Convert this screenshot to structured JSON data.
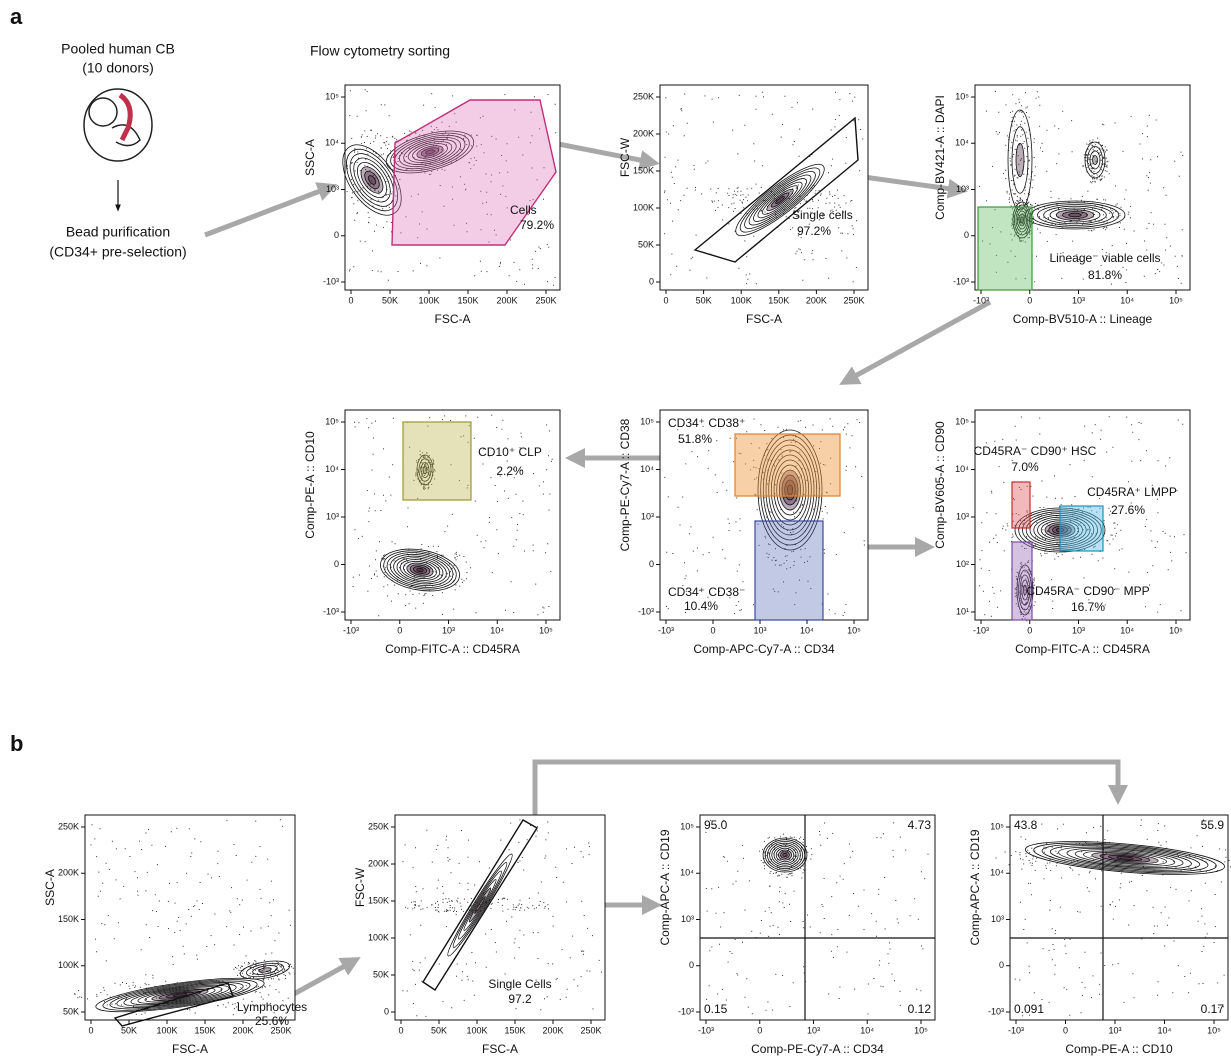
{
  "panel_a": {
    "label": "a",
    "source": {
      "title": "Pooled human CB",
      "subtitle": "(10 donors)",
      "step": "Bead purification",
      "step_note": "(CD34+ pre-selection)"
    },
    "section_title": "Flow cytometry sorting",
    "plots": [
      {
        "y_label": "SSC-A",
        "x_label": "FSC-A",
        "x_ticks": [
          "0",
          "50K",
          "100K",
          "150K",
          "200K",
          "250K"
        ],
        "y_ticks": [
          "-10³",
          "0",
          "10³",
          "10⁴",
          "10⁵"
        ],
        "gates": [
          {
            "name": "Cells",
            "value": "79.2%"
          }
        ]
      },
      {
        "y_label": "FSC-W",
        "x_label": "FSC-A",
        "x_ticks": [
          "0",
          "50K",
          "100K",
          "150K",
          "200K",
          "250K"
        ],
        "y_ticks": [
          "0",
          "50K",
          "100K",
          "150K",
          "200K",
          "250K"
        ],
        "gates": [
          {
            "name": "Single cells",
            "value": "97.2%"
          }
        ]
      },
      {
        "y_label": "Comp-BV421-A :: DAPI",
        "x_label": "Comp-BV510-A :: Lineage",
        "x_ticks": [
          "-10³",
          "0",
          "10³",
          "10⁴",
          "10⁵"
        ],
        "y_ticks": [
          "-10³",
          "0",
          "10³",
          "10⁴",
          "10⁵"
        ],
        "gates": [
          {
            "name": "Lineage⁻ viable cells",
            "value": "81.8%"
          }
        ]
      },
      {
        "y_label": "Comp-PE-A :: CD10",
        "x_label": "Comp-FITC-A :: CD45RA",
        "x_ticks": [
          "-10³",
          "0",
          "10³",
          "10⁴",
          "10⁵"
        ],
        "y_ticks": [
          "-10³",
          "0",
          "10³",
          "10⁴",
          "10⁵"
        ],
        "gates": [
          {
            "name": "CD10⁺ CLP",
            "value": "2.2%"
          }
        ]
      },
      {
        "y_label": "Comp-PE-Cy7-A :: CD38",
        "x_label": "Comp-APC-Cy7-A :: CD34",
        "x_ticks": [
          "-10³",
          "0",
          "10³",
          "10⁴",
          "10⁵"
        ],
        "y_ticks": [
          "-10³",
          "0",
          "10³",
          "10⁴",
          "10⁵"
        ],
        "gates": [
          {
            "name": "CD34⁺ CD38⁺",
            "value": "51.8%"
          },
          {
            "name": "CD34⁺ CD38⁻",
            "value": "10.4%"
          }
        ]
      },
      {
        "y_label": "Comp-BV605-A :: CD90",
        "x_label": "Comp-FITC-A :: CD45RA",
        "x_ticks": [
          "-10³",
          "0",
          "10³",
          "10⁴",
          "10⁵"
        ],
        "y_ticks": [
          "10¹",
          "10²",
          "10³",
          "10⁴",
          "10⁵"
        ],
        "gates": [
          {
            "name": "CD45RA⁻ CD90⁺ HSC",
            "value": "7.0%"
          },
          {
            "name": "CD45RA⁺ LMPP",
            "value": "27.6%"
          },
          {
            "name": "CD45RA⁻ CD90⁻ MPP",
            "value": "16.7%"
          }
        ]
      }
    ]
  },
  "panel_b": {
    "label": "b",
    "plots": [
      {
        "y_label": "SSC-A",
        "x_label": "FSC-A",
        "x_ticks": [
          "0",
          "50K",
          "100K",
          "150K",
          "200K",
          "250K"
        ],
        "y_ticks": [
          "50K",
          "100K",
          "150K",
          "200K",
          "250K"
        ],
        "gates": [
          {
            "name": "Lymphocytes",
            "value": "25.6%"
          }
        ]
      },
      {
        "y_label": "FSC-W",
        "x_label": "FSC-A",
        "x_ticks": [
          "0",
          "50K",
          "100K",
          "150K",
          "200K",
          "250K"
        ],
        "y_ticks": [
          "0",
          "50K",
          "100K",
          "150K",
          "200K",
          "250K"
        ],
        "gates": [
          {
            "name": "Single Cells",
            "value": "97.2"
          }
        ]
      },
      {
        "y_label": "Comp-APC-A :: CD19",
        "x_label": "Comp-PE-Cy7-A :: CD34",
        "x_ticks": [
          "-10³",
          "0",
          "10³",
          "10⁴",
          "10⁵"
        ],
        "y_ticks": [
          "-10³",
          "0",
          "10³",
          "10⁴",
          "10⁵"
        ],
        "quadrants": [
          "95.0",
          "4.73",
          "0.15",
          "0.12"
        ]
      },
      {
        "y_label": "Comp-APC-A :: CD19",
        "x_label": "Comp-PE-A :: CD10",
        "x_ticks": [
          "-10³",
          "0",
          "10³",
          "10⁴",
          "10⁵"
        ],
        "y_ticks": [
          "-10³",
          "0",
          "10³",
          "10⁴",
          "10⁵"
        ],
        "quadrants": [
          "43.8",
          "55.9",
          "0.091",
          "0.17"
        ]
      }
    ]
  }
}
